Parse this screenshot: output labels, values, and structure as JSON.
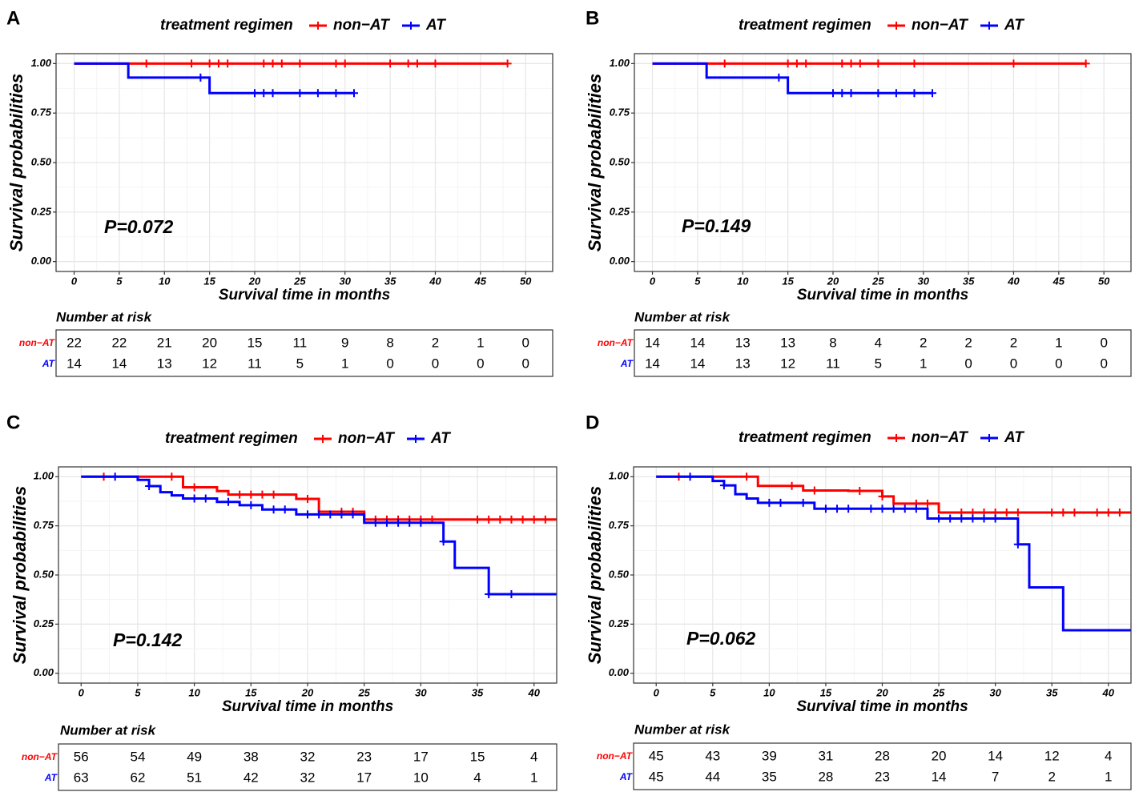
{
  "chart_data": [
    {
      "type": "line",
      "panel_label": "A",
      "legend_title": "treatment regimen",
      "legend_position": "top",
      "series": [
        {
          "name": "non−AT",
          "color": "#ff0000",
          "steps": [
            [
              0,
              1.0
            ],
            [
              48,
              1.0
            ]
          ],
          "censor": [
            [
              8,
              1.0
            ],
            [
              13,
              1.0
            ],
            [
              15,
              1.0
            ],
            [
              16,
              1.0
            ],
            [
              17,
              1.0
            ],
            [
              21,
              1.0
            ],
            [
              22,
              1.0
            ],
            [
              23,
              1.0
            ],
            [
              25,
              1.0
            ],
            [
              29,
              1.0
            ],
            [
              30,
              1.0
            ],
            [
              35,
              1.0
            ],
            [
              37,
              1.0
            ],
            [
              38,
              1.0
            ],
            [
              40,
              1.0
            ],
            [
              48,
              1.0
            ]
          ]
        },
        {
          "name": "AT",
          "color": "#0000ff",
          "steps": [
            [
              0,
              1.0
            ],
            [
              6,
              0.929
            ],
            [
              15,
              0.851
            ],
            [
              31,
              0.851
            ]
          ],
          "censor": [
            [
              14,
              0.929
            ],
            [
              20,
              0.851
            ],
            [
              21,
              0.851
            ],
            [
              22,
              0.851
            ],
            [
              25,
              0.851
            ],
            [
              27,
              0.851
            ],
            [
              29,
              0.851
            ],
            [
              31,
              0.851
            ]
          ]
        }
      ],
      "p_value": "P=0.072",
      "xlabel": "Survival time in months",
      "ylabel": "Survival probabilities",
      "xlim": [
        -2,
        53
      ],
      "ylim": [
        -0.05,
        1.05
      ],
      "xticks": [
        0,
        5,
        10,
        15,
        20,
        25,
        30,
        35,
        40,
        45,
        50
      ],
      "yticks": [
        "0.00",
        "0.25",
        "0.50",
        "0.75",
        "1.00"
      ],
      "risk_title": "Number at risk",
      "risk_table": [
        {
          "label": "non−AT",
          "values": [
            "22",
            "22",
            "21",
            "20",
            "15",
            "11",
            "9",
            "8",
            "2",
            "1",
            "0"
          ]
        },
        {
          "label": "AT",
          "values": [
            "14",
            "14",
            "13",
            "12",
            "11",
            "5",
            "1",
            "0",
            "0",
            "0",
            "0"
          ]
        }
      ]
    },
    {
      "type": "line",
      "panel_label": "B",
      "legend_title": "treatment regimen",
      "legend_position": "top",
      "series": [
        {
          "name": "non−AT",
          "color": "#ff0000",
          "steps": [
            [
              0,
              1.0
            ],
            [
              48,
              1.0
            ]
          ],
          "censor": [
            [
              8,
              1.0
            ],
            [
              15,
              1.0
            ],
            [
              16,
              1.0
            ],
            [
              17,
              1.0
            ],
            [
              21,
              1.0
            ],
            [
              22,
              1.0
            ],
            [
              23,
              1.0
            ],
            [
              25,
              1.0
            ],
            [
              29,
              1.0
            ],
            [
              40,
              1.0
            ],
            [
              48,
              1.0
            ]
          ]
        },
        {
          "name": "AT",
          "color": "#0000ff",
          "steps": [
            [
              0,
              1.0
            ],
            [
              6,
              0.929
            ],
            [
              15,
              0.851
            ],
            [
              31,
              0.851
            ]
          ],
          "censor": [
            [
              14,
              0.929
            ],
            [
              20,
              0.851
            ],
            [
              21,
              0.851
            ],
            [
              22,
              0.851
            ],
            [
              25,
              0.851
            ],
            [
              27,
              0.851
            ],
            [
              29,
              0.851
            ],
            [
              31,
              0.851
            ]
          ]
        }
      ],
      "p_value": "P=0.149",
      "xlabel": "Survival time in months",
      "ylabel": "Survival probabilities",
      "xlim": [
        -2,
        53
      ],
      "ylim": [
        -0.05,
        1.05
      ],
      "xticks": [
        0,
        5,
        10,
        15,
        20,
        25,
        30,
        35,
        40,
        45,
        50
      ],
      "yticks": [
        "0.00",
        "0.25",
        "0.50",
        "0.75",
        "1.00"
      ],
      "risk_title": "Number at risk",
      "risk_table": [
        {
          "label": "non−AT",
          "values": [
            "14",
            "14",
            "13",
            "13",
            "8",
            "4",
            "2",
            "2",
            "2",
            "1",
            "0"
          ]
        },
        {
          "label": "AT",
          "values": [
            "14",
            "14",
            "13",
            "12",
            "11",
            "5",
            "1",
            "0",
            "0",
            "0",
            "0"
          ]
        }
      ]
    },
    {
      "type": "line",
      "panel_label": "C",
      "legend_title": "treatment regimen",
      "legend_position": "top",
      "series": [
        {
          "name": "non−AT",
          "color": "#ff0000",
          "steps": [
            [
              0,
              1.0
            ],
            [
              9,
              0.946
            ],
            [
              12,
              0.927
            ],
            [
              13,
              0.909
            ],
            [
              19,
              0.887
            ],
            [
              21,
              0.822
            ],
            [
              25,
              0.782
            ],
            [
              42,
              0.782
            ]
          ],
          "censor": [
            [
              2,
              1.0
            ],
            [
              8,
              1.0
            ],
            [
              10,
              0.946
            ],
            [
              14,
              0.909
            ],
            [
              15,
              0.909
            ],
            [
              16,
              0.909
            ],
            [
              17,
              0.909
            ],
            [
              20,
              0.887
            ],
            [
              23,
              0.822
            ],
            [
              24,
              0.822
            ],
            [
              26,
              0.782
            ],
            [
              27,
              0.782
            ],
            [
              28,
              0.782
            ],
            [
              29,
              0.782
            ],
            [
              30,
              0.782
            ],
            [
              31,
              0.782
            ],
            [
              35,
              0.782
            ],
            [
              36,
              0.782
            ],
            [
              37,
              0.782
            ],
            [
              38,
              0.782
            ],
            [
              39,
              0.782
            ],
            [
              40,
              0.782
            ],
            [
              41,
              0.782
            ]
          ]
        },
        {
          "name": "AT",
          "color": "#0000ff",
          "steps": [
            [
              0,
              1.0
            ],
            [
              5,
              0.984
            ],
            [
              6,
              0.952
            ],
            [
              7,
              0.921
            ],
            [
              8,
              0.905
            ],
            [
              9,
              0.889
            ],
            [
              12,
              0.872
            ],
            [
              14,
              0.855
            ],
            [
              16,
              0.833
            ],
            [
              19,
              0.808
            ],
            [
              25,
              0.766
            ],
            [
              32,
              0.67
            ],
            [
              33,
              0.536
            ],
            [
              36,
              0.402
            ],
            [
              42,
              0.402
            ]
          ],
          "censor": [
            [
              3,
              1.0
            ],
            [
              6,
              0.952
            ],
            [
              10,
              0.889
            ],
            [
              11,
              0.889
            ],
            [
              13,
              0.872
            ],
            [
              15,
              0.855
            ],
            [
              17,
              0.833
            ],
            [
              18,
              0.833
            ],
            [
              20,
              0.808
            ],
            [
              21,
              0.808
            ],
            [
              22,
              0.808
            ],
            [
              23,
              0.808
            ],
            [
              24,
              0.808
            ],
            [
              26,
              0.766
            ],
            [
              27,
              0.766
            ],
            [
              28,
              0.766
            ],
            [
              29,
              0.766
            ],
            [
              30,
              0.766
            ],
            [
              32,
              0.67
            ],
            [
              36,
              0.402
            ],
            [
              38,
              0.402
            ]
          ]
        }
      ],
      "p_value": "P=0.142",
      "xlabel": "Survival time in months",
      "ylabel": "Survival probabilities",
      "xlim": [
        -2,
        42
      ],
      "ylim": [
        -0.05,
        1.05
      ],
      "xticks": [
        0,
        5,
        10,
        15,
        20,
        25,
        30,
        35,
        40
      ],
      "yticks": [
        "0.00",
        "0.25",
        "0.50",
        "0.75",
        "1.00"
      ],
      "risk_title": "Number at risk",
      "risk_table": [
        {
          "label": "non−AT",
          "values": [
            "56",
            "54",
            "49",
            "38",
            "32",
            "23",
            "17",
            "15",
            "4"
          ]
        },
        {
          "label": "AT",
          "values": [
            "63",
            "62",
            "51",
            "42",
            "32",
            "17",
            "10",
            "4",
            "1"
          ]
        }
      ]
    },
    {
      "type": "line",
      "panel_label": "D",
      "legend_title": "treatment regimen",
      "legend_position": "top",
      "series": [
        {
          "name": "non−AT",
          "color": "#ff0000",
          "steps": [
            [
              0,
              1.0
            ],
            [
              9,
              0.953
            ],
            [
              13,
              0.93
            ],
            [
              17,
              0.928
            ],
            [
              20,
              0.9
            ],
            [
              21,
              0.863
            ],
            [
              25,
              0.818
            ],
            [
              42,
              0.818
            ]
          ],
          "censor": [
            [
              2,
              1.0
            ],
            [
              8,
              1.0
            ],
            [
              12,
              0.953
            ],
            [
              14,
              0.93
            ],
            [
              18,
              0.928
            ],
            [
              20,
              0.9
            ],
            [
              23,
              0.863
            ],
            [
              24,
              0.863
            ],
            [
              27,
              0.818
            ],
            [
              28,
              0.818
            ],
            [
              29,
              0.818
            ],
            [
              30,
              0.818
            ],
            [
              31,
              0.818
            ],
            [
              32,
              0.818
            ],
            [
              35,
              0.818
            ],
            [
              36,
              0.818
            ],
            [
              37,
              0.818
            ],
            [
              39,
              0.818
            ],
            [
              40,
              0.818
            ],
            [
              41,
              0.818
            ]
          ]
        },
        {
          "name": "AT",
          "color": "#0000ff",
          "steps": [
            [
              0,
              1.0
            ],
            [
              5,
              0.978
            ],
            [
              6,
              0.956
            ],
            [
              7,
              0.911
            ],
            [
              8,
              0.889
            ],
            [
              9,
              0.867
            ],
            [
              14,
              0.837
            ],
            [
              24,
              0.787
            ],
            [
              32,
              0.656
            ],
            [
              33,
              0.437
            ],
            [
              36,
              0.219
            ],
            [
              42,
              0.219
            ]
          ],
          "censor": [
            [
              3,
              1.0
            ],
            [
              6,
              0.956
            ],
            [
              10,
              0.867
            ],
            [
              11,
              0.867
            ],
            [
              13,
              0.867
            ],
            [
              15,
              0.837
            ],
            [
              16,
              0.837
            ],
            [
              17,
              0.837
            ],
            [
              19,
              0.837
            ],
            [
              20,
              0.837
            ],
            [
              21,
              0.837
            ],
            [
              22,
              0.837
            ],
            [
              23,
              0.837
            ],
            [
              25,
              0.787
            ],
            [
              26,
              0.787
            ],
            [
              27,
              0.787
            ],
            [
              28,
              0.787
            ],
            [
              29,
              0.787
            ],
            [
              30,
              0.787
            ],
            [
              32,
              0.656
            ]
          ]
        }
      ],
      "p_value": "P=0.062",
      "xlabel": "Survival time in months",
      "ylabel": "Survival probabilities",
      "xlim": [
        -2,
        42
      ],
      "ylim": [
        -0.05,
        1.05
      ],
      "xticks": [
        0,
        5,
        10,
        15,
        20,
        25,
        30,
        35,
        40
      ],
      "yticks": [
        "0.00",
        "0.25",
        "0.50",
        "0.75",
        "1.00"
      ],
      "risk_title": "Number at risk",
      "risk_table": [
        {
          "label": "non−AT",
          "values": [
            "45",
            "43",
            "39",
            "31",
            "28",
            "20",
            "14",
            "12",
            "4"
          ]
        },
        {
          "label": "AT",
          "values": [
            "45",
            "44",
            "35",
            "28",
            "23",
            "14",
            "7",
            "2",
            "1"
          ]
        }
      ]
    }
  ]
}
